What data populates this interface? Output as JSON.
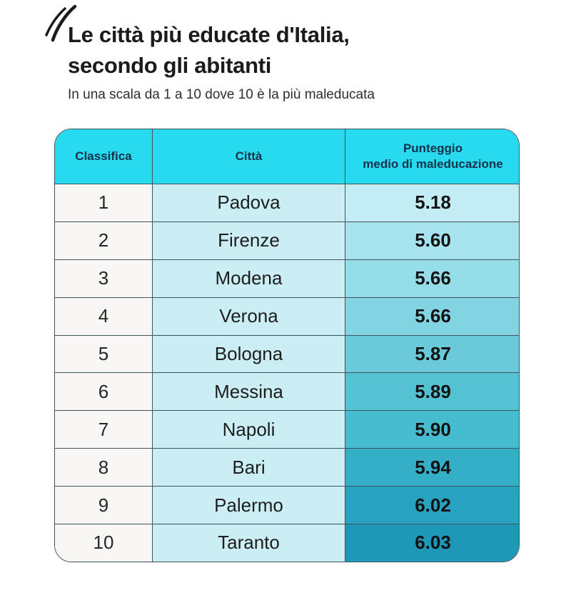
{
  "header": {
    "title_line1": "Le città più educate d'Italia,",
    "title_line2": "secondo gli abitanti",
    "subtitle": "In una scala da 1 a 10 dove 10 è la più maleducata"
  },
  "table": {
    "columns": {
      "rank": "Classifica",
      "city": "Città",
      "score_line1": "Punteggio",
      "score_line2": "medio di maleducazione"
    },
    "rows": [
      {
        "rank": "1",
        "city": "Padova",
        "score": "5.18",
        "score_bg": "#c3ecf4"
      },
      {
        "rank": "2",
        "city": "Firenze",
        "score": "5.60",
        "score_bg": "#a7e3ef"
      },
      {
        "rank": "3",
        "city": "Modena",
        "score": "5.66",
        "score_bg": "#95dde9"
      },
      {
        "rank": "4",
        "city": "Verona",
        "score": "5.66",
        "score_bg": "#82d4e3"
      },
      {
        "rank": "5",
        "city": "Bologna",
        "score": "5.87",
        "score_bg": "#69cada"
      },
      {
        "rank": "6",
        "city": "Messina",
        "score": "5.89",
        "score_bg": "#55c2d4"
      },
      {
        "rank": "7",
        "city": "Napoli",
        "score": "5.90",
        "score_bg": "#47bbcf"
      },
      {
        "rank": "8",
        "city": "Bari",
        "score": "5.94",
        "score_bg": "#35aec8"
      },
      {
        "rank": "9",
        "city": "Palermo",
        "score": "6.02",
        "score_bg": "#27a2c0"
      },
      {
        "rank": "10",
        "city": "Taranto",
        "score": "6.03",
        "score_bg": "#1e98b7"
      }
    ]
  },
  "colors": {
    "header_bg": "#28daf0",
    "header_text": "#15324a",
    "rank_col_bg": "#f8f7f5",
    "city_col_bg": "#cbeef5",
    "border": "#40545c",
    "title_text": "#1b1b1b",
    "subtitle_text": "#2e2e2e",
    "score_scale_min": "#c3ecf4",
    "score_scale_max": "#1e98b7"
  },
  "chart_data": {
    "type": "table",
    "title": "Le città più educate d'Italia, secondo gli abitanti",
    "subtitle": "In una scala da 1 a 10 dove 10 è la più maleducata",
    "columns": [
      "Classifica",
      "Città",
      "Punteggio medio di maleducazione"
    ],
    "rows": [
      [
        1,
        "Padova",
        5.18
      ],
      [
        2,
        "Firenze",
        5.6
      ],
      [
        3,
        "Modena",
        5.66
      ],
      [
        4,
        "Verona",
        5.66
      ],
      [
        5,
        "Bologna",
        5.87
      ],
      [
        6,
        "Messina",
        5.89
      ],
      [
        7,
        "Napoli",
        5.9
      ],
      [
        8,
        "Bari",
        5.94
      ],
      [
        9,
        "Palermo",
        6.02
      ],
      [
        10,
        "Taranto",
        6.03
      ]
    ],
    "value_range": [
      1,
      10
    ],
    "shading": "score column shaded light-to-dark teal as score increases"
  }
}
